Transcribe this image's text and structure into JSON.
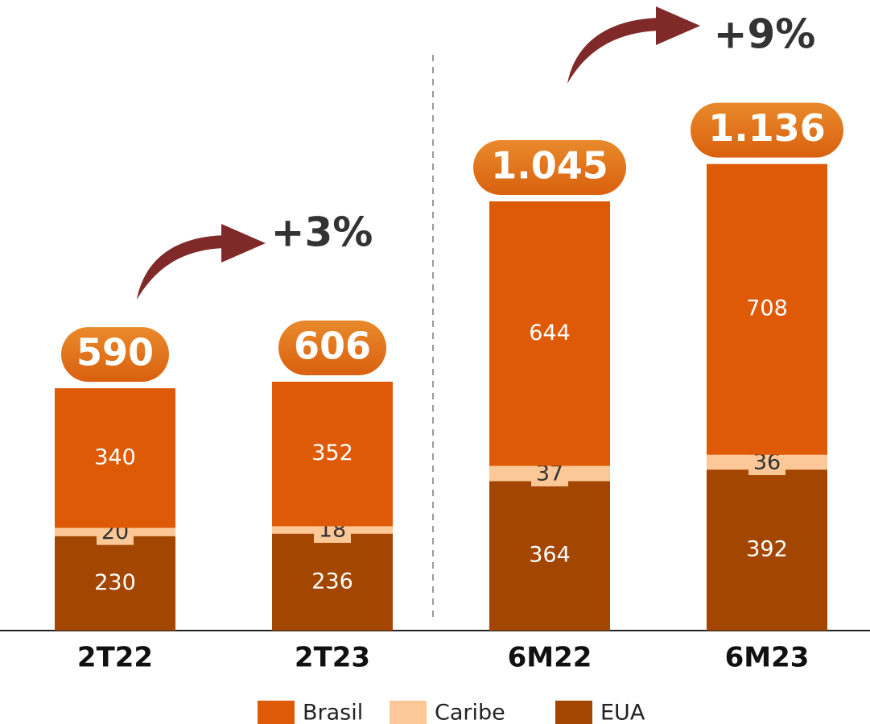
{
  "chart_data": {
    "type": "stacked_bar",
    "categories": [
      "2T22",
      "2T23",
      "6M22",
      "6M23"
    ],
    "series": [
      {
        "name": "EUA",
        "color": "#a34602",
        "values": [
          230,
          236,
          364,
          392
        ]
      },
      {
        "name": "Caribe",
        "color": "#fdc898",
        "values": [
          20,
          18,
          37,
          36
        ]
      },
      {
        "name": "Brasil",
        "color": "#de5a06",
        "values": [
          340,
          352,
          644,
          708
        ]
      }
    ],
    "totals": {
      "values": [
        590,
        606,
        1045,
        1136
      ],
      "value_labels": [
        "590",
        "606",
        "1.045",
        "1.136"
      ]
    },
    "annotations": [
      "+3%",
      "+9%"
    ],
    "ylim": [
      0,
      1200
    ]
  }
}
